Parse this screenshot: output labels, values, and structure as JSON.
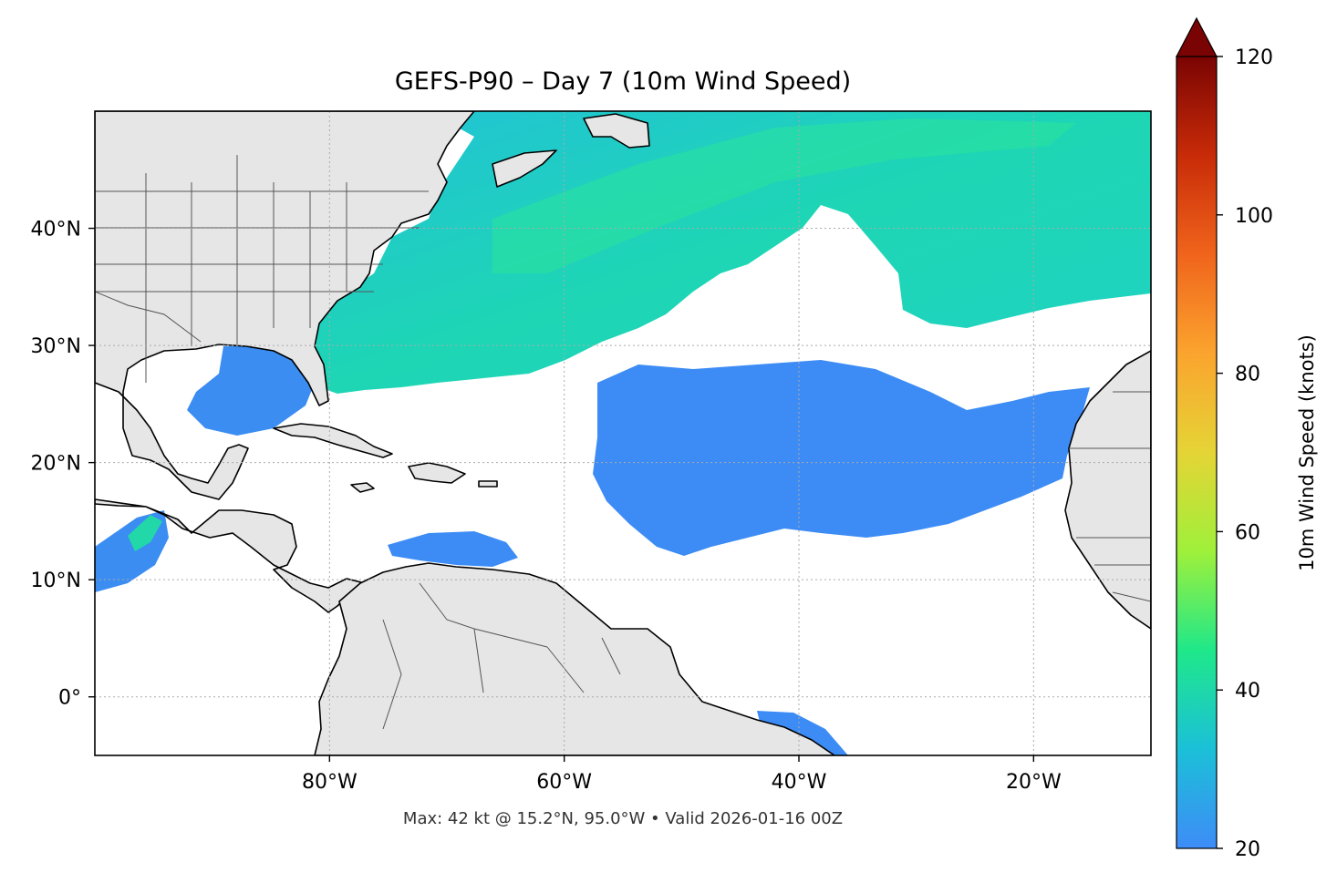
{
  "title": "GEFS-P90 – Day 7 (10m Wind Speed)",
  "subtitle": "Max: 42 kt @ 15.2°N, 95.0°W • Valid 2026-01-16 00Z",
  "map": {
    "extent": {
      "lon": [
        -100,
        -10
      ],
      "lat": [
        -5,
        50
      ]
    },
    "lon_ticks": [
      {
        "value": -80,
        "label": "80°W"
      },
      {
        "value": -60,
        "label": "60°W"
      },
      {
        "value": -40,
        "label": "40°W"
      },
      {
        "value": -20,
        "label": "20°W"
      }
    ],
    "lat_ticks": [
      {
        "value": 40,
        "label": "40°N"
      },
      {
        "value": 30,
        "label": "30°N"
      },
      {
        "value": 20,
        "label": "20°N"
      },
      {
        "value": 10,
        "label": "10°N"
      },
      {
        "value": 0,
        "label": "0°"
      }
    ],
    "gridlines": true,
    "land_color": "#e6e6e6",
    "ocean_color": "#ffffff",
    "max_point": {
      "lat": 15.2,
      "lon": -95.0,
      "speed_kt": 42
    }
  },
  "colorbar": {
    "label": "10m Wind Speed (knots)",
    "min": 20,
    "max": 120,
    "extend": "max",
    "ticks": [
      20,
      40,
      60,
      80,
      100,
      120
    ],
    "colors": [
      "#3e8cf7",
      "#1bc0d8",
      "#1fe88a",
      "#9ff03a",
      "#e5d436",
      "#fba42e",
      "#f0641c",
      "#c82b08",
      "#7a0403"
    ]
  }
}
